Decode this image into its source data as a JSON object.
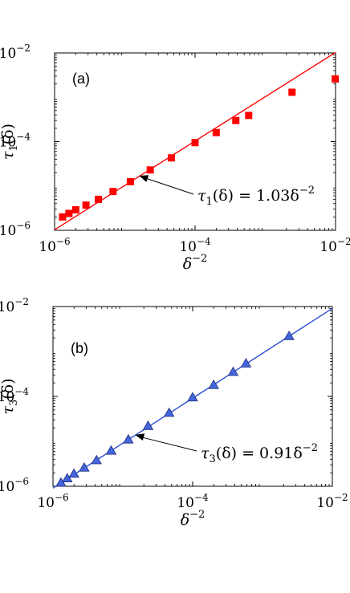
{
  "chart_data": [
    {
      "type": "scatter",
      "panel_label": "(a)",
      "xlabel": "δ",
      "xlabel_sup": "−2",
      "ylabel": "τ",
      "ylabel_sub": "1",
      "ylabel_arg": "(δ)",
      "xscale": "log",
      "yscale": "log",
      "xlim": [
        1e-06,
        0.01
      ],
      "ylim": [
        1e-06,
        0.01
      ],
      "x_ticks": [
        {
          "value": 1e-06,
          "base": "10",
          "exp": "−6"
        },
        {
          "value": 0.0001,
          "base": "10",
          "exp": "−4"
        },
        {
          "value": 0.01,
          "base": "10",
          "exp": "−2"
        }
      ],
      "y_ticks": [
        {
          "value": 1e-06,
          "base": "10",
          "exp": "−6"
        },
        {
          "value": 0.0001,
          "base": "10",
          "exp": "−4"
        },
        {
          "value": 0.01,
          "base": "10",
          "exp": "−2"
        }
      ],
      "grid": false,
      "marker": "square",
      "color": "#ff0000",
      "points": [
        [
          1.3e-06,
          2e-06
        ],
        [
          1.6e-06,
          2.4e-06
        ],
        [
          2e-06,
          2.9e-06
        ],
        [
          2.8e-06,
          3.7e-06
        ],
        [
          4.2e-06,
          5e-06
        ],
        [
          6.8e-06,
          7.5e-06
        ],
        [
          1.2e-05,
          1.25e-05
        ],
        [
          2.3e-05,
          2.3e-05
        ],
        [
          4.6e-05,
          4.3e-05
        ],
        [
          0.0001,
          9.5e-05
        ],
        [
          0.0002,
          0.00016
        ],
        [
          0.00038,
          0.0003
        ],
        [
          0.00058,
          0.00039
        ],
        [
          0.0024,
          0.0013
        ],
        [
          0.0099,
          0.0026
        ]
      ],
      "fit": {
        "coefficient": 1.03,
        "exponent": -2
      },
      "annotation": {
        "lhs": "τ",
        "lhs_sub": "1",
        "lhs_arg": "(δ) = 1.03δ",
        "sup": "−2",
        "arrow_target": [
          1.6e-05,
          1.7e-05
        ]
      }
    },
    {
      "type": "scatter",
      "panel_label": "(b)",
      "xlabel": "δ",
      "xlabel_sup": "−2",
      "ylabel": "τ",
      "ylabel_sub": "3",
      "ylabel_arg": "(δ)",
      "xscale": "log",
      "yscale": "log",
      "xlim": [
        1e-06,
        0.01
      ],
      "ylim": [
        1e-06,
        0.01
      ],
      "x_ticks": [
        {
          "value": 1e-06,
          "base": "10",
          "exp": "−6"
        },
        {
          "value": 0.0001,
          "base": "10",
          "exp": "−4"
        },
        {
          "value": 0.01,
          "base": "10",
          "exp": "−2"
        }
      ],
      "y_ticks": [
        {
          "value": 1e-06,
          "base": "10",
          "exp": "−6"
        },
        {
          "value": 0.0001,
          "base": "10",
          "exp": "−4"
        },
        {
          "value": 0.01,
          "base": "10",
          "exp": "−2"
        }
      ],
      "grid": false,
      "marker": "triangle",
      "color": "#4466dd",
      "line_color": "#2a4fd6",
      "points": [
        [
          1.3e-06,
          1.2e-06
        ],
        [
          1.6e-06,
          1.5e-06
        ],
        [
          2e-06,
          1.9e-06
        ],
        [
          2.8e-06,
          2.6e-06
        ],
        [
          4.2e-06,
          3.8e-06
        ],
        [
          6.8e-06,
          6.2e-06
        ],
        [
          1.2e-05,
          1.1e-05
        ],
        [
          2.3e-05,
          2.2e-05
        ],
        [
          4.6e-05,
          4.3e-05
        ],
        [
          0.0001,
          9.5e-05
        ],
        [
          0.0002,
          0.00018
        ],
        [
          0.00038,
          0.00035
        ],
        [
          0.00058,
          0.00054
        ],
        [
          0.0024,
          0.0022
        ]
      ],
      "fit": {
        "coefficient": 0.91,
        "exponent": -2
      },
      "annotation": {
        "lhs": "τ",
        "lhs_sub": "3",
        "lhs_arg": "(δ) = 0.91δ",
        "sup": "−2",
        "arrow_target": [
          1.5e-05,
          1.4e-05
        ]
      }
    }
  ]
}
